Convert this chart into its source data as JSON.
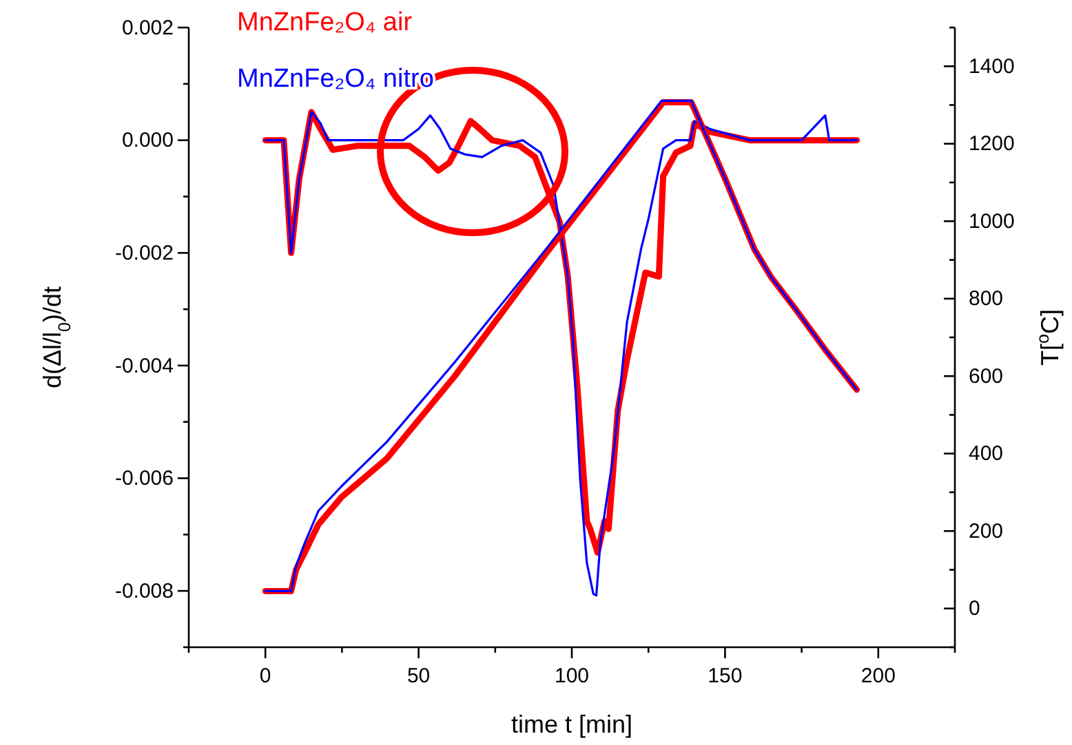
{
  "chart_data": {
    "type": "line",
    "xlabel": "time t  [min]",
    "ylabel": "d(Δl/l$_{0}$)/dt",
    "y2label": "T[$^{o}$C]",
    "xlim": [
      -25,
      225
    ],
    "xticks": [
      {
        "value": -25,
        "label": null
      },
      0,
      {
        "value": 25,
        "label": null
      },
      50,
      {
        "value": 75,
        "label": null
      },
      100,
      {
        "value": 125,
        "label": null
      },
      150,
      {
        "value": 175,
        "label": null
      },
      200,
      {
        "value": 225,
        "label": null
      }
    ],
    "ylim": [
      -0.009,
      0.002
    ],
    "yticks": [
      {
        "value": -0.009,
        "label": null
      },
      {
        "value": -0.008,
        "label": "-0.008"
      },
      {
        "value": -0.007,
        "label": null
      },
      {
        "value": -0.006,
        "label": "-0.006"
      },
      {
        "value": -0.005,
        "label": null
      },
      {
        "value": -0.004,
        "label": "-0.004"
      },
      {
        "value": -0.003,
        "label": null
      },
      {
        "value": -0.002,
        "label": "-0.002"
      },
      {
        "value": -0.001,
        "label": null
      },
      {
        "value": 0,
        "label": "0.000"
      },
      {
        "value": 0.001,
        "label": null
      },
      {
        "value": 0.002,
        "label": "0.002"
      }
    ],
    "y2lim": [
      -100,
      1500
    ],
    "y2ticks": [
      {
        "value": -100,
        "label": null
      },
      0,
      {
        "value": 100,
        "label": null
      },
      200,
      {
        "value": 300,
        "label": null
      },
      400,
      {
        "value": 500,
        "label": null
      },
      600,
      {
        "value": 700,
        "label": null
      },
      800,
      {
        "value": 900,
        "label": null
      },
      1000,
      {
        "value": 1100,
        "label": null
      },
      1200,
      {
        "value": 1300,
        "label": null
      },
      1400,
      {
        "value": 1500,
        "label": null
      }
    ],
    "legend": "top left",
    "series": [
      {
        "name": "MnZnFe₂O₄ air",
        "color": "#ff0000",
        "x": [
          0,
          6,
          8.4,
          11,
          15,
          18,
          22,
          30,
          40,
          47,
          52,
          56.4,
          60,
          63,
          67,
          70,
          74,
          83,
          88,
          91.5,
          96,
          98.7,
          101.8,
          104.9,
          106,
          108.4,
          110.7,
          112,
          115,
          118,
          124,
          128.4,
          129.8,
          134,
          138.7,
          140,
          145,
          158,
          175,
          193
        ],
        "values": [
          0,
          0,
          -0.002,
          -0.0007,
          0.0005,
          0.0002,
          -0.00017,
          -0.0001,
          -0.0001,
          -0.0001,
          -0.0003,
          -0.00054,
          -0.0004,
          -0.0001,
          0.00034,
          0.0002,
          0,
          -0.0001,
          -0.0003,
          -0.0008,
          -0.00145,
          -0.00242,
          -0.00438,
          -0.00676,
          -0.0069,
          -0.00732,
          -0.00676,
          -0.0069,
          -0.0048,
          -0.0039,
          -0.00235,
          -0.00242,
          -0.00064,
          -0.00022,
          -0.0001,
          0.0003,
          0.00015,
          0,
          0,
          0
        ]
      },
      {
        "name": "MnZnFe₂O₄ nitro",
        "color": "#0000ff",
        "x": [
          0,
          6,
          8.4,
          11,
          15,
          18,
          20.4,
          30,
          40,
          45,
          50,
          53.8,
          57,
          60.4,
          65,
          70.7,
          77,
          84,
          89.8,
          94,
          98.7,
          100.4,
          102.7,
          104.9,
          107,
          108,
          109.3,
          113.7,
          118,
          122.6,
          125,
          129.8,
          134,
          138.7,
          140,
          145,
          158,
          175,
          182.7,
          184,
          193
        ],
        "values": [
          0,
          0,
          -0.002,
          -0.0007,
          0.0005,
          0.0003,
          0,
          0,
          0,
          0,
          0.0002,
          0.00044,
          0.0002,
          -0.00015,
          -0.00025,
          -0.0003,
          -0.0001,
          0,
          -0.00022,
          -0.0008,
          -0.00242,
          -0.00357,
          -0.006,
          -0.0075,
          -0.00805,
          -0.00808,
          -0.00715,
          -0.00553,
          -0.00323,
          -0.00193,
          -0.0014,
          -0.00015,
          0,
          0,
          0.00034,
          0.0002,
          0,
          0,
          0.00044,
          0,
          0
        ]
      },
      {
        "axis": "y2",
        "color": "#ff0000",
        "x": [
          0,
          8.4,
          10,
          12.9,
          17.3,
          24.9,
          39.6,
          61.8,
          91.5,
          129.8,
          139,
          143,
          150,
          159.6,
          165,
          172.9,
          183,
          193
        ],
        "values": [
          45,
          45,
          100,
          146,
          217,
          288,
          387,
          600,
          916,
          1307,
          1307,
          1236,
          1110,
          927,
          856,
          774,
          665,
          565
        ]
      },
      {
        "axis": "y2",
        "color": "#0000ff",
        "x": [
          0,
          8.4,
          10,
          12.9,
          17.3,
          24.9,
          39.6,
          61.8,
          91.5,
          129.3,
          139,
          143,
          150,
          159.6,
          165,
          172.9,
          183,
          193
        ],
        "values": [
          45,
          45,
          110,
          170,
          252,
          316,
          430,
          636,
          927,
          1311,
          1311,
          1236,
          1110,
          927,
          856,
          774,
          665,
          565
        ]
      }
    ]
  }
}
